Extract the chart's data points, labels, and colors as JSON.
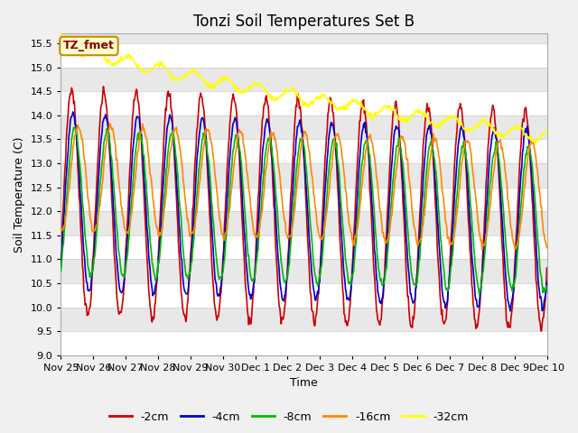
{
  "title": "Tonzi Soil Temperatures Set B",
  "xlabel": "Time",
  "ylabel": "Soil Temperature (C)",
  "ylim": [
    9.0,
    15.7
  ],
  "background_color": "#e8e8e8",
  "plot_bg_color": "#e8e8e8",
  "legend_label": "TZ_fmet",
  "tick_labels": [
    "Nov 25",
    "Nov 26",
    "Nov 27",
    "Nov 28",
    "Nov 29",
    "Nov 30",
    "Dec 1",
    "Dec 2",
    "Dec 3",
    "Dec 4",
    "Dec 5",
    "Dec 6",
    "Dec 7",
    "Dec 8",
    "Dec 9",
    "Dec 10"
  ],
  "line_colors": {
    "-2cm": "#cc0000",
    "-4cm": "#0000cc",
    "-8cm": "#00bb00",
    "-16cm": "#ff8800",
    "-32cm": "#ffff00"
  },
  "yticks": [
    9.0,
    9.5,
    10.0,
    10.5,
    11.0,
    11.5,
    12.0,
    12.5,
    13.0,
    13.5,
    14.0,
    14.5,
    15.0,
    15.5
  ],
  "title_fontsize": 12,
  "axis_fontsize": 9,
  "tick_fontsize": 8
}
